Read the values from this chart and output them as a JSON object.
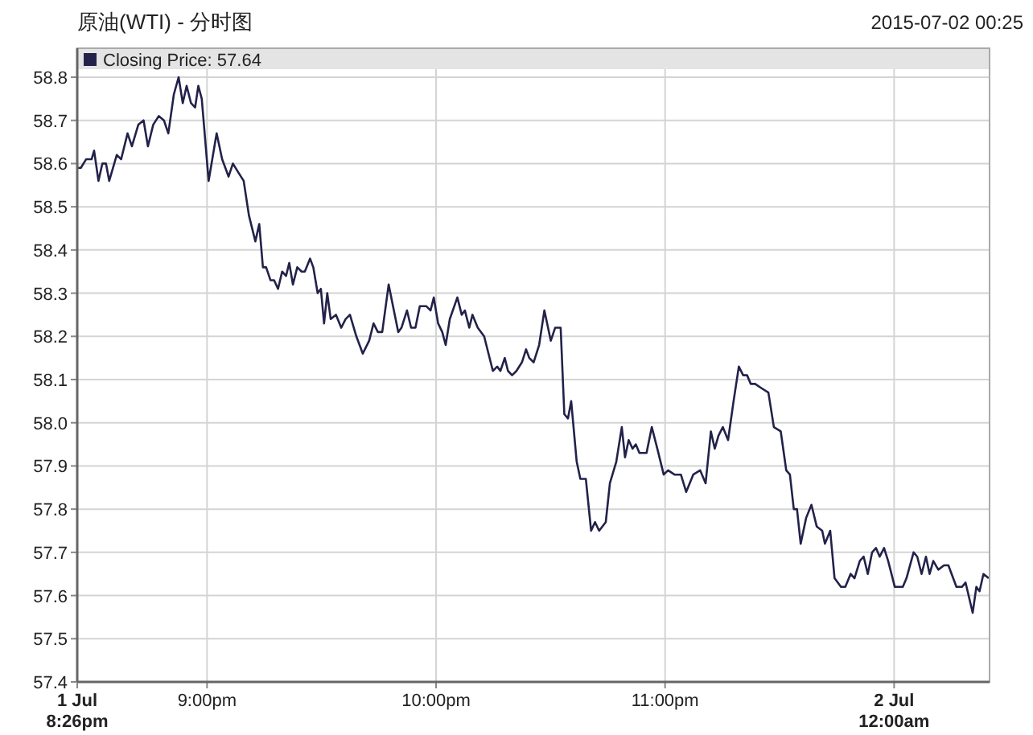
{
  "chart_data": {
    "type": "line",
    "title": "原油(WTI) - 分时图",
    "annotations": [
      "2015-07-02 00:25"
    ],
    "legend": "top left",
    "grid": true,
    "marker": "none",
    "line_style": "solid",
    "xlim": [
      20.4333,
      24.4167
    ],
    "ylim": [
      57.4,
      58.8
    ],
    "xticks": [
      {
        "value": 20.4333,
        "label": "1 Jul\n8:26pm"
      },
      {
        "value": 21,
        "label": "9:00pm"
      },
      {
        "value": 22,
        "label": "10:00pm"
      },
      {
        "value": 23,
        "label": "11:00pm"
      },
      {
        "value": 24,
        "label": "2 Jul\n12:00am"
      }
    ],
    "yticks": [
      {
        "value": 57.4,
        "label": "57.4"
      },
      {
        "value": 57.5,
        "label": "57.5"
      },
      {
        "value": 57.6,
        "label": "57.6"
      },
      {
        "value": 57.7,
        "label": "57.7"
      },
      {
        "value": 57.8,
        "label": "57.8"
      },
      {
        "value": 57.9,
        "label": "57.9"
      },
      {
        "value": 58.0,
        "label": "58.0"
      },
      {
        "value": 58.1,
        "label": "58.1"
      },
      {
        "value": 58.2,
        "label": "58.2"
      },
      {
        "value": 58.3,
        "label": "58.3"
      },
      {
        "value": 58.4,
        "label": "58.4"
      },
      {
        "value": 58.5,
        "label": "58.5"
      },
      {
        "value": 58.6,
        "label": "58.6"
      },
      {
        "value": 58.7,
        "label": "58.7"
      },
      {
        "value": 58.8,
        "label": "58.8"
      }
    ],
    "series": [
      {
        "name": "Closing Price: 57.64",
        "color": "#22224a",
        "x": [
          20.4333,
          20.449,
          20.472,
          20.496,
          20.507,
          20.526,
          20.543,
          20.559,
          20.573,
          20.606,
          20.625,
          20.653,
          20.672,
          20.7,
          20.723,
          20.742,
          20.765,
          20.789,
          20.812,
          20.831,
          20.855,
          20.876,
          20.894,
          20.911,
          20.93,
          20.948,
          20.962,
          20.977,
          21.007,
          21.042,
          21.066,
          21.094,
          21.113,
          21.136,
          21.16,
          21.183,
          21.211,
          21.228,
          21.244,
          21.258,
          21.277,
          21.293,
          21.31,
          21.328,
          21.345,
          21.359,
          21.375,
          21.394,
          21.413,
          21.427,
          21.45,
          21.464,
          21.483,
          21.497,
          21.511,
          21.525,
          21.54,
          21.563,
          21.586,
          21.605,
          21.624,
          21.652,
          21.68,
          21.708,
          21.727,
          21.746,
          21.765,
          21.793,
          21.812,
          21.835,
          21.849,
          21.873,
          21.891,
          21.91,
          21.929,
          21.957,
          21.976,
          21.99,
          22.009,
          22.027,
          22.042,
          22.06,
          22.093,
          22.112,
          22.126,
          22.145,
          22.159,
          22.182,
          22.21,
          22.229,
          22.248,
          22.267,
          22.281,
          22.3,
          22.314,
          22.332,
          22.351,
          22.375,
          22.393,
          22.407,
          22.426,
          22.45,
          22.473,
          22.501,
          22.52,
          22.544,
          22.56,
          22.576,
          22.59,
          22.614,
          22.63,
          22.654,
          22.677,
          22.694,
          22.712,
          22.741,
          22.759,
          22.787,
          22.811,
          22.825,
          22.841,
          22.858,
          22.872,
          22.888,
          22.919,
          22.942,
          22.966,
          22.994,
          23.013,
          23.041,
          23.069,
          23.092,
          23.123,
          23.153,
          23.177,
          23.2,
          23.217,
          23.233,
          23.252,
          23.275,
          23.299,
          23.322,
          23.341,
          23.358,
          23.374,
          23.393,
          23.421,
          23.451,
          23.475,
          23.505,
          23.529,
          23.545,
          23.562,
          23.576,
          23.592,
          23.616,
          23.639,
          23.662,
          23.686,
          23.698,
          23.721,
          23.74,
          23.768,
          23.787,
          23.81,
          23.827,
          23.85,
          23.867,
          23.885,
          23.904,
          23.921,
          23.937,
          23.956,
          23.974,
          24.003,
          24.038,
          24.054,
          24.085,
          24.101,
          24.12,
          24.139,
          24.155,
          24.171,
          24.193,
          24.218,
          24.237,
          24.272,
          24.296,
          24.312,
          24.343,
          24.359,
          24.373,
          24.39,
          24.413
        ],
        "values": [
          58.59,
          58.59,
          58.61,
          58.61,
          58.63,
          58.56,
          58.6,
          58.6,
          58.56,
          58.62,
          58.61,
          58.67,
          58.64,
          58.69,
          58.7,
          58.64,
          58.69,
          58.71,
          58.7,
          58.67,
          58.76,
          58.8,
          58.74,
          58.78,
          58.74,
          58.73,
          58.78,
          58.75,
          58.56,
          58.67,
          58.61,
          58.57,
          58.6,
          58.58,
          58.56,
          58.48,
          58.42,
          58.46,
          58.36,
          58.36,
          58.33,
          58.33,
          58.31,
          58.35,
          58.34,
          58.37,
          58.32,
          58.36,
          58.35,
          58.35,
          58.38,
          58.36,
          58.3,
          58.31,
          58.23,
          58.3,
          58.24,
          58.25,
          58.22,
          58.24,
          58.25,
          58.2,
          58.16,
          58.19,
          58.23,
          58.21,
          58.21,
          58.32,
          58.27,
          58.21,
          58.22,
          58.26,
          58.22,
          58.22,
          58.27,
          58.27,
          58.26,
          58.29,
          58.23,
          58.21,
          58.18,
          58.24,
          58.29,
          58.25,
          58.26,
          58.22,
          58.25,
          58.22,
          58.2,
          58.16,
          58.12,
          58.13,
          58.12,
          58.15,
          58.12,
          58.11,
          58.12,
          58.14,
          58.17,
          58.15,
          58.14,
          58.18,
          58.26,
          58.19,
          58.22,
          58.22,
          58.02,
          58.01,
          58.05,
          57.91,
          57.87,
          57.87,
          57.75,
          57.77,
          57.75,
          57.77,
          57.86,
          57.91,
          57.99,
          57.92,
          57.96,
          57.94,
          57.95,
          57.93,
          57.93,
          57.99,
          57.94,
          57.88,
          57.89,
          57.88,
          57.88,
          57.84,
          57.88,
          57.89,
          57.86,
          57.98,
          57.94,
          57.97,
          57.99,
          57.96,
          58.05,
          58.13,
          58.11,
          58.11,
          58.09,
          58.09,
          58.08,
          58.07,
          57.99,
          57.98,
          57.89,
          57.88,
          57.8,
          57.8,
          57.72,
          57.78,
          57.81,
          57.76,
          57.75,
          57.72,
          57.75,
          57.64,
          57.62,
          57.62,
          57.65,
          57.64,
          57.68,
          57.69,
          57.65,
          57.7,
          57.71,
          57.69,
          57.71,
          57.68,
          57.62,
          57.62,
          57.64,
          57.7,
          57.69,
          57.65,
          57.69,
          57.65,
          57.68,
          57.66,
          57.67,
          57.67,
          57.62,
          57.62,
          57.63,
          57.56,
          57.62,
          57.61,
          57.65,
          57.64
        ]
      }
    ]
  }
}
